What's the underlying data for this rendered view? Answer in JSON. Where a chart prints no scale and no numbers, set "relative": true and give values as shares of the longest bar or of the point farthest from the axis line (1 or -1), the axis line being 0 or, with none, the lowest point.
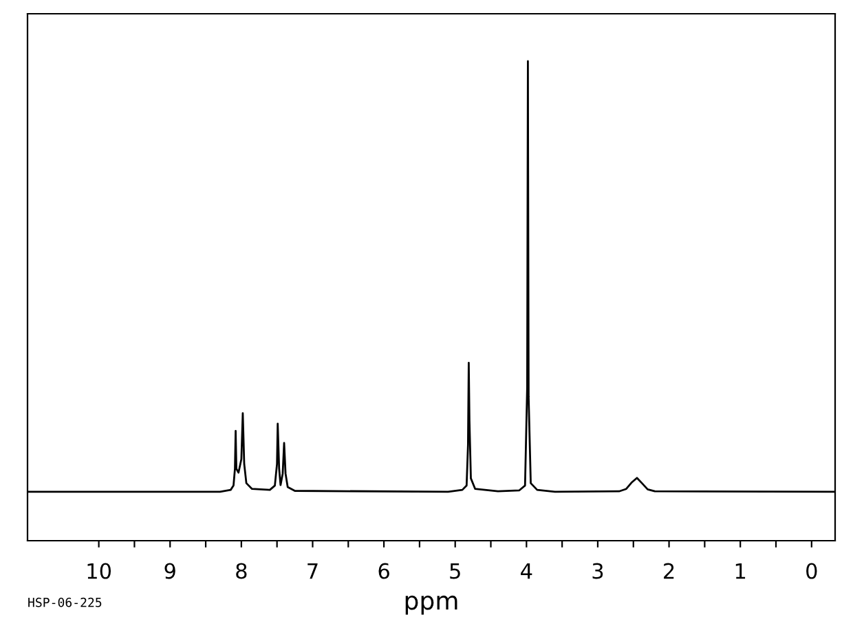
{
  "chart_data": {
    "type": "line",
    "xlabel": "ppm",
    "relative": true,
    "grid": false,
    "legend": false,
    "marker": "none",
    "line_style": "solid",
    "tick_labels": "x",
    "xlim": [
      11.0,
      -0.33
    ],
    "xticks": [
      10,
      {
        "value": 9.5,
        "label": null
      },
      9,
      {
        "value": 8.5,
        "label": null
      },
      8,
      {
        "value": 7.5,
        "label": null
      },
      7,
      {
        "value": 6.5,
        "label": null
      },
      6,
      {
        "value": 5.5,
        "label": null
      },
      5,
      {
        "value": 4.5,
        "label": null
      },
      4,
      {
        "value": 3.5,
        "label": null
      },
      3,
      {
        "value": 2.5,
        "label": null
      },
      2,
      {
        "value": 1.5,
        "label": null
      },
      1,
      {
        "value": 0.5,
        "label": null
      },
      0
    ],
    "annotations": [
      "HSP-06-225"
    ],
    "series": [
      {
        "color": "#000000",
        "x": [
          11.0,
          8.3,
          8.15,
          8.11,
          8.09,
          8.08,
          8.07,
          8.04,
          8.0,
          7.98,
          7.96,
          7.93,
          7.85,
          7.6,
          7.53,
          7.5,
          7.49,
          7.47,
          7.45,
          7.42,
          7.4,
          7.38,
          7.35,
          7.25,
          5.1,
          4.9,
          4.84,
          4.82,
          4.81,
          4.8,
          4.78,
          4.72,
          4.4,
          4.1,
          4.02,
          3.99,
          3.98,
          3.97,
          3.94,
          3.85,
          3.6,
          2.7,
          2.6,
          2.52,
          2.45,
          2.38,
          2.3,
          2.2,
          -0.33
        ],
        "values": [
          0.102,
          0.102,
          0.106,
          0.115,
          0.15,
          0.229,
          0.15,
          0.142,
          0.17,
          0.266,
          0.16,
          0.12,
          0.108,
          0.106,
          0.115,
          0.16,
          0.244,
          0.15,
          0.116,
          0.14,
          0.204,
          0.14,
          0.112,
          0.104,
          0.102,
          0.106,
          0.115,
          0.2,
          0.371,
          0.25,
          0.13,
          0.108,
          0.103,
          0.105,
          0.115,
          0.32,
          1.0,
          0.3,
          0.12,
          0.106,
          0.102,
          0.103,
          0.108,
          0.122,
          0.131,
          0.12,
          0.107,
          0.103,
          0.102
        ]
      }
    ]
  }
}
